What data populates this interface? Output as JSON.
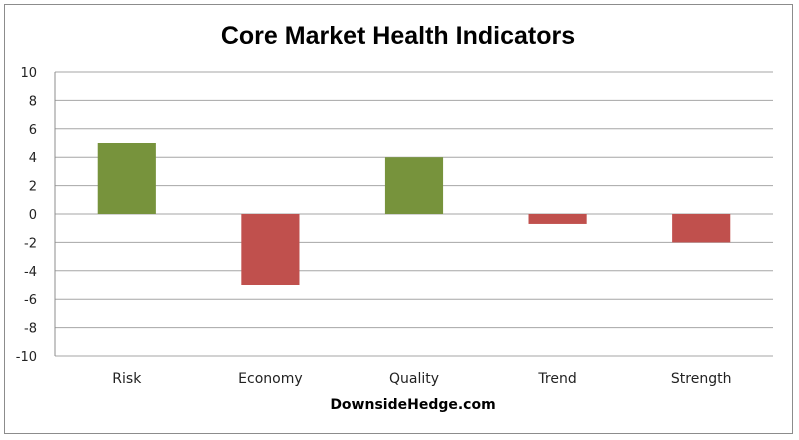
{
  "chart_data": {
    "type": "bar",
    "title": "Core Market Health Indicators",
    "categories": [
      "Risk",
      "Economy",
      "Quality",
      "Trend",
      "Strength"
    ],
    "values": [
      5,
      -5,
      4,
      -0.7,
      -2
    ],
    "ylim": [
      -10,
      10
    ],
    "yticks": [
      10,
      8,
      6,
      4,
      2,
      0,
      -2,
      -4,
      -6,
      -8,
      -10
    ],
    "grid": true,
    "legend": "none",
    "xlabel": "",
    "ylabel": "",
    "positive_color": "#77933c",
    "negative_color": "#c0504d",
    "credit": "DownsideHedge.com"
  }
}
